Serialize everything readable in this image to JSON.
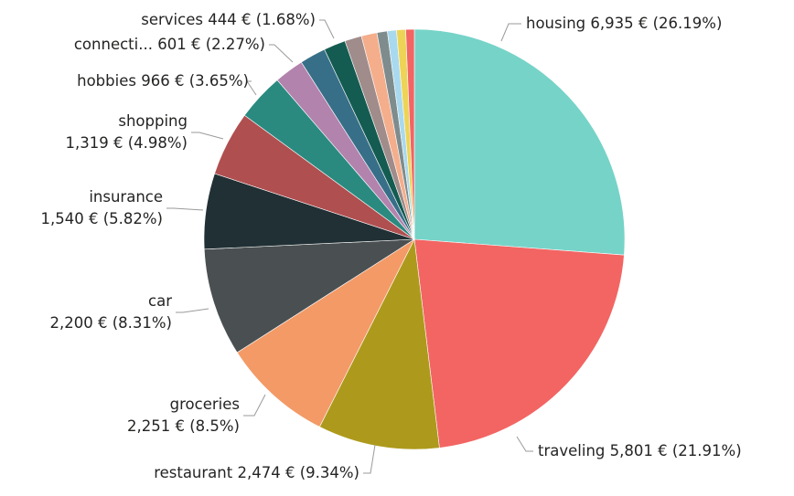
{
  "chart_data": {
    "type": "pie",
    "title": "",
    "legend": "none",
    "start": "top, clockwise",
    "slices": [
      {
        "label": "housing",
        "value": 6935,
        "value_text": "6,935 €",
        "percent_text": "(26.19%)",
        "color": "#76D3C8"
      },
      {
        "label": "traveling",
        "value": 5801,
        "value_text": "5,801 €",
        "percent_text": "(21.91%)",
        "color": "#F26563"
      },
      {
        "label": "restaurant",
        "value": 2474,
        "value_text": "2,474 €",
        "percent_text": "(9.34%)",
        "color": "#AD9A1C"
      },
      {
        "label": "groceries",
        "value": 2251,
        "value_text": "2,251 €",
        "percent_text": "(8.5%)",
        "color": "#F39A67"
      },
      {
        "label": "car",
        "value": 2200,
        "value_text": "2,200 €",
        "percent_text": "(8.31%)",
        "color": "#4A5051"
      },
      {
        "label": "insurance",
        "value": 1540,
        "value_text": "1,540 €",
        "percent_text": "(5.82%)",
        "color": "#213034"
      },
      {
        "label": "shopping",
        "value": 1319,
        "value_text": "1,319 €",
        "percent_text": "(4.98%)",
        "color": "#B04F50"
      },
      {
        "label": "hobbies",
        "value": 966,
        "value_text": "966 €",
        "percent_text": "(3.65%)",
        "color": "#2A8A80"
      },
      {
        "label": "connecti...",
        "value": 601,
        "value_text": "601 €",
        "percent_text": "(2.27%)",
        "color": "#B283AD"
      },
      {
        "label": "",
        "value": 530,
        "color": "#386F88"
      },
      {
        "label": "services",
        "value": 444,
        "value_text": "444 €",
        "percent_text": "(1.68%)",
        "color": "#145C52"
      },
      {
        "label": "",
        "value": 344,
        "color": "#A08C8A"
      },
      {
        "label": "",
        "value": 318,
        "color": "#F4AE8C"
      },
      {
        "label": "",
        "value": 212,
        "color": "#7F8C8D"
      },
      {
        "label": "",
        "value": 185,
        "color": "#A9D9EE"
      },
      {
        "label": "",
        "value": 185,
        "color": "#EDD457"
      },
      {
        "label": "",
        "value": 174,
        "color": "#F26563"
      }
    ]
  }
}
